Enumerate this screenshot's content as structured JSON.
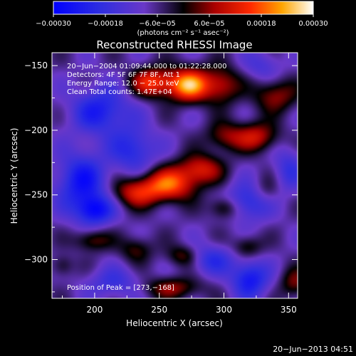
{
  "chart_data": {
    "type": "heatmap",
    "title": "Reconstructed RHESSI Image",
    "xlabel": "Heliocentric X (arcsec)",
    "ylabel": "Heliocentric Y (arcsec)",
    "xlim": [
      167,
      357
    ],
    "ylim": [
      -330,
      -140
    ],
    "x_ticks": [
      200,
      250,
      300,
      350
    ],
    "y_ticks": [
      -150,
      -200,
      -250,
      -300
    ],
    "x_tick_labels": [
      "200",
      "250",
      "300",
      "350"
    ],
    "y_tick_labels": [
      "−150",
      "−200",
      "−250",
      "−300"
    ],
    "colorbar": {
      "range": [
        -0.0003,
        0.0003
      ],
      "ticks": [
        -0.0003,
        -0.00018,
        -6e-05,
        6e-05,
        0.00018,
        0.0003
      ],
      "tick_labels": [
        "−0.00030",
        "−0.00018",
        "−6.0e−05",
        "6.0e−05",
        "0.00018",
        "0.00030"
      ],
      "unit_label": "(photons cm⁻² s⁻¹ asec⁻²)"
    },
    "info_lines": [
      "20−Jun−2004 01:09:44.000 to 01:22:28.000",
      "Detectors: 4F 5F 6F 7F 8F, Att 1",
      "Energy Range: 12.0 − 25.0 keV",
      "Clean     Total counts: 1.47E+04"
    ],
    "peak_label": "Position of Peak = [273,−168]",
    "peak": [
      273,
      -168
    ],
    "blobs": [
      {
        "x": 273,
        "y": -165,
        "value": 0.0003,
        "sx": 11,
        "sy": 9
      },
      {
        "x": 245,
        "y": -163,
        "value": 0.00022,
        "sx": 12,
        "sy": 8
      },
      {
        "x": 298,
        "y": -165,
        "value": 0.00016,
        "sx": 10,
        "sy": 10
      },
      {
        "x": 340,
        "y": -173,
        "value": 0.00014,
        "sx": 12,
        "sy": 9
      },
      {
        "x": 325,
        "y": -205,
        "value": 0.00017,
        "sx": 12,
        "sy": 8
      },
      {
        "x": 300,
        "y": -205,
        "value": 0.00012,
        "sx": 10,
        "sy": 8
      },
      {
        "x": 282,
        "y": -230,
        "value": 0.00018,
        "sx": 12,
        "sy": 8
      },
      {
        "x": 258,
        "y": -242,
        "value": 0.00024,
        "sx": 14,
        "sy": 9
      },
      {
        "x": 232,
        "y": -248,
        "value": 0.00018,
        "sx": 13,
        "sy": 8
      },
      {
        "x": 300,
        "y": -260,
        "value": 0.00012,
        "sx": 8,
        "sy": 6
      },
      {
        "x": 198,
        "y": -285,
        "value": 0.00012,
        "sx": 10,
        "sy": 6
      },
      {
        "x": 232,
        "y": -292,
        "value": 0.0001,
        "sx": 9,
        "sy": 7
      },
      {
        "x": 268,
        "y": -297,
        "value": 0.00011,
        "sx": 9,
        "sy": 6
      },
      {
        "x": 318,
        "y": -290,
        "value": 0.0001,
        "sx": 8,
        "sy": 6
      },
      {
        "x": 260,
        "y": -322,
        "value": 0.00013,
        "sx": 16,
        "sy": 6
      },
      {
        "x": 175,
        "y": -305,
        "value": 8e-05,
        "sx": 6,
        "sy": 6
      },
      {
        "x": 355,
        "y": -318,
        "value": 0.00012,
        "sx": 8,
        "sy": 8
      },
      {
        "x": 332,
        "y": -248,
        "value": 8e-05,
        "sx": 8,
        "sy": 8
      },
      {
        "x": 205,
        "y": -185,
        "value": -0.00016,
        "sx": 16,
        "sy": 13
      },
      {
        "x": 230,
        "y": -215,
        "value": -0.00014,
        "sx": 12,
        "sy": 12
      },
      {
        "x": 190,
        "y": -240,
        "value": -0.00018,
        "sx": 14,
        "sy": 16
      },
      {
        "x": 200,
        "y": -262,
        "value": -0.00018,
        "sx": 10,
        "sy": 8
      },
      {
        "x": 320,
        "y": -255,
        "value": -0.00015,
        "sx": 12,
        "sy": 10
      },
      {
        "x": 320,
        "y": -315,
        "value": -0.00018,
        "sx": 10,
        "sy": 10
      },
      {
        "x": 290,
        "y": -300,
        "value": -0.00012,
        "sx": 12,
        "sy": 8
      },
      {
        "x": 350,
        "y": -230,
        "value": -0.0001,
        "sx": 8,
        "sy": 12
      },
      {
        "x": 215,
        "y": -318,
        "value": -0.0001,
        "sx": 14,
        "sy": 8
      },
      {
        "x": 330,
        "y": -150,
        "value": -8e-05,
        "sx": 10,
        "sy": 8
      }
    ]
  },
  "timestamp": "20−Jun−2013 04:51"
}
